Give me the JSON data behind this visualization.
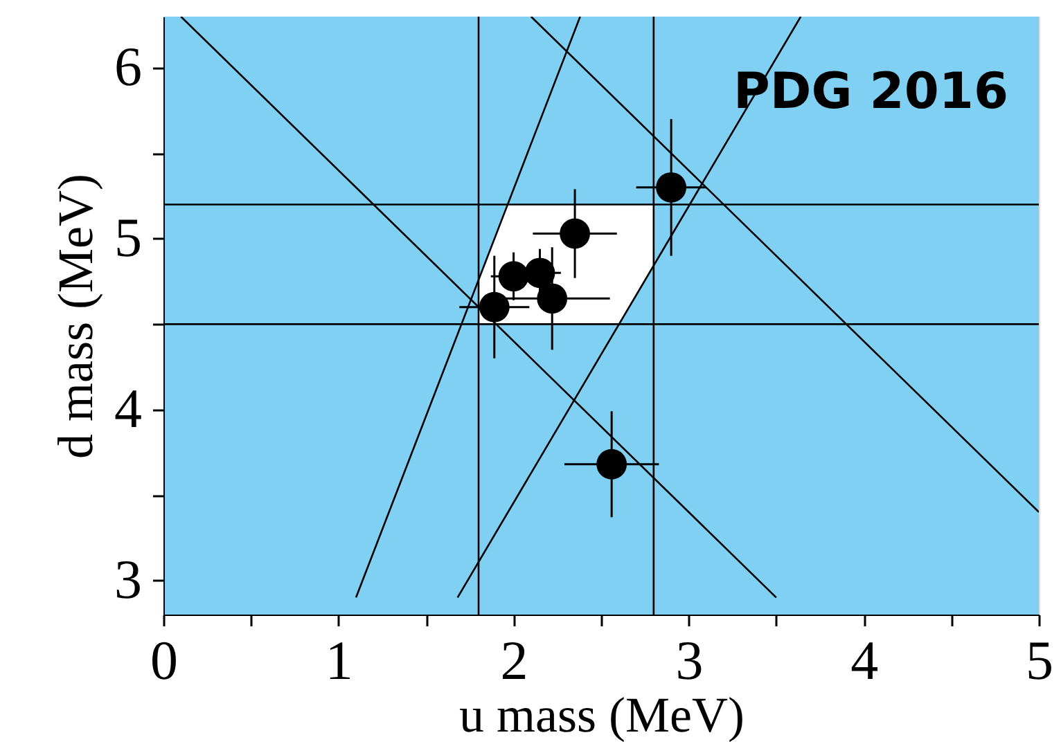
{
  "chart_data": {
    "type": "scatter",
    "xlabel": "u mass (MeV)",
    "ylabel": "d mass (MeV)",
    "annotations": [
      "PDG  2016"
    ],
    "xlim": [
      0,
      5
    ],
    "xticks": [
      0,
      {
        "value": 0.5,
        "label": null
      },
      1,
      {
        "value": 1.5,
        "label": null
      },
      2,
      {
        "value": 2.5,
        "label": null
      },
      3,
      {
        "value": 3.5,
        "label": null
      },
      4,
      {
        "value": 4.5,
        "label": null
      },
      5
    ],
    "ylim": [
      2.8,
      6.3
    ],
    "yticks": [
      3,
      {
        "value": 3.5,
        "label": null
      },
      4,
      {
        "value": 4.5,
        "label": null
      },
      5,
      {
        "value": 5.5,
        "label": null
      },
      6
    ],
    "bands": [
      {
        "axis": "x",
        "from": 0,
        "to": 5,
        "color": "#80d0f4"
      }
    ],
    "ref_lines": [
      {
        "axis": "x",
        "value": 1.8
      },
      {
        "axis": "x",
        "value": 2.8
      },
      {
        "axis": "y",
        "value": 4.5
      },
      {
        "axis": "y",
        "value": 5.2
      }
    ],
    "series": [
      {
        "type": "area",
        "color": "#ffffff",
        "x": [
          1.8,
          1.96,
          2.6,
          2.8
        ],
        "values": [
          4.77,
          5.2,
          5.2,
          5.2
        ]
      },
      {
        "type": "area",
        "color": "#80d0f4",
        "x": [
          1.8,
          1.96,
          2.6,
          2.8
        ],
        "values": [
          4.5,
          4.5,
          4.5,
          4.84
        ]
      },
      {
        "type": "line",
        "color": "#000000",
        "x": [
          0.1,
          3.5
        ],
        "values": [
          6.3,
          2.9
        ]
      },
      {
        "type": "line",
        "color": "#000000",
        "x": [
          2.1,
          5.0
        ],
        "values": [
          6.3,
          3.4
        ]
      },
      {
        "type": "line",
        "color": "#000000",
        "x": [
          1.1,
          2.38
        ],
        "values": [
          2.9,
          6.3
        ]
      },
      {
        "type": "line",
        "color": "#000000",
        "x": [
          1.68,
          3.64
        ],
        "values": [
          2.9,
          6.3
        ]
      },
      {
        "marker": "circle",
        "color": "#000000",
        "x": [
          1.89,
          2.0,
          2.15,
          2.22,
          2.35,
          2.9,
          2.56
        ],
        "values": [
          4.6,
          4.78,
          4.8,
          4.65,
          5.03,
          5.3,
          3.68
        ],
        "errors": [
          0.3,
          0.14,
          0.14,
          0.3,
          0.26,
          0.4,
          0.31
        ],
        "xerrors": [
          0.2,
          0.13,
          0.12,
          0.33,
          0.24,
          0.2,
          0.27
        ]
      }
    ]
  }
}
